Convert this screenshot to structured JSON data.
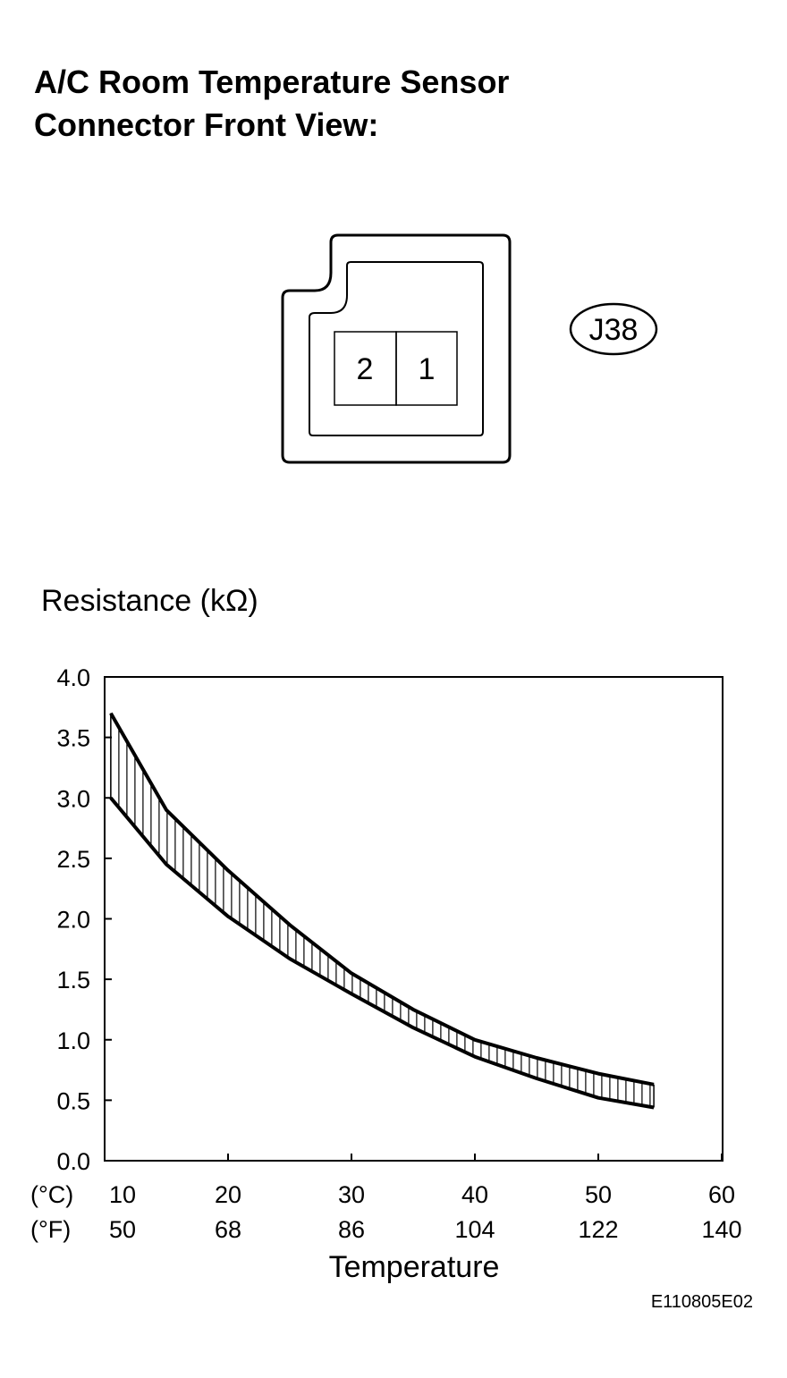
{
  "header": {
    "title_line1": "A/C Room Temperature Sensor",
    "title_line2": "Connector Front View:"
  },
  "connector": {
    "pins": [
      "2",
      "1"
    ],
    "code": "J38"
  },
  "chart_data": {
    "type": "line",
    "y_label": "Resistance (kΩ)",
    "x_label": "Temperature",
    "x_unit_label": "(°C)",
    "x2_unit_label": "(°F)",
    "x": [
      10.5,
      15,
      20,
      25,
      30,
      35,
      40,
      45,
      50,
      54.5
    ],
    "series": [
      {
        "color": "#000000",
        "values": [
          3.7,
          2.9,
          2.4,
          1.95,
          1.55,
          1.25,
          1.0,
          0.85,
          0.72,
          0.63
        ]
      },
      {
        "color": "#000000",
        "values": [
          3.0,
          2.45,
          2.02,
          1.67,
          1.38,
          1.1,
          0.86,
          0.68,
          0.52,
          0.44
        ]
      }
    ],
    "hatched_band": true,
    "xlim": [
      10,
      60
    ],
    "xticks": [
      10,
      20,
      30,
      40,
      50,
      60
    ],
    "x2ticks": [
      50,
      68,
      86,
      104,
      122,
      140
    ],
    "ylim": [
      0,
      4
    ],
    "yticks": [
      {
        "value": 0,
        "label": "0.0"
      },
      {
        "value": 0.5,
        "label": "0.5"
      },
      {
        "value": 1,
        "label": "1.0"
      },
      {
        "value": 1.5,
        "label": "1.5"
      },
      {
        "value": 2,
        "label": "2.0"
      },
      {
        "value": 2.5,
        "label": "2.5"
      },
      {
        "value": 3,
        "label": "3.0"
      },
      {
        "value": 3.5,
        "label": "3.5"
      },
      {
        "value": 4,
        "label": "4.0"
      }
    ],
    "figure_code": "E110805E02"
  }
}
